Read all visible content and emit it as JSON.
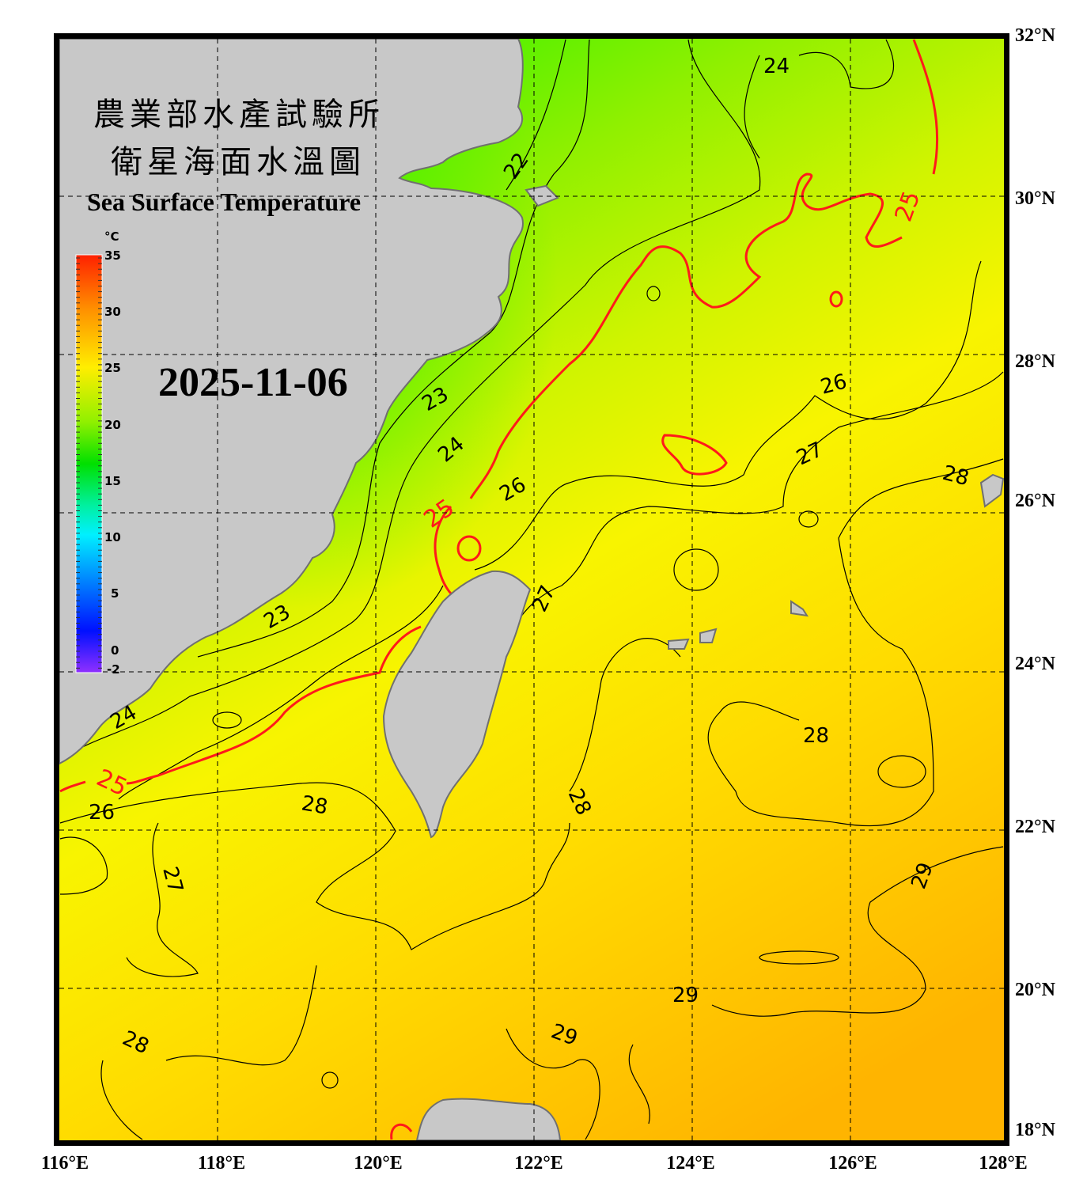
{
  "title": {
    "agency": "農業部水產試驗所",
    "chart_title_cn": "衛星海面水溫圖",
    "chart_title_en": "Sea Surface Temperature",
    "date": "2025-11-06"
  },
  "colorbar": {
    "unit": "°C",
    "ticks": [
      "35",
      "30",
      "25",
      "20",
      "15",
      "10",
      "5",
      "0",
      "-2"
    ],
    "colors": [
      "#ff2000",
      "#ff9000",
      "#ffee00",
      "#a0f000",
      "#00e000",
      "#00f0a0",
      "#00f0ff",
      "#0090ff",
      "#0020ff",
      "#6000ff",
      "#9030ff"
    ]
  },
  "axes": {
    "lon_labels": [
      "116°E",
      "118°E",
      "120°E",
      "122°E",
      "124°E",
      "126°E",
      "128°E"
    ],
    "lat_labels": [
      "32°N",
      "30°N",
      "28°N",
      "26°N",
      "24°N",
      "22°N",
      "20°N",
      "18°N"
    ]
  },
  "contour_labels": {
    "c22": "22",
    "c23a": "23",
    "c23b": "23",
    "c24a": "24",
    "c24b": "24",
    "c24c": "24",
    "c25a": "25",
    "c25b": "25",
    "c25c": "25",
    "c26a": "26",
    "c26b": "26",
    "c26c": "26",
    "c27a": "27",
    "c27b": "27",
    "c27c": "27",
    "c28a": "28",
    "c28b": "28",
    "c28c": "28",
    "c28d": "28",
    "c28e": "28",
    "c29a": "29",
    "c29b": "29",
    "c29c": "29"
  },
  "colors": {
    "land": "#c8c8c8",
    "coast": "#707070",
    "isotherm_25": "#ff1a1a",
    "isotherm": "#000000"
  }
}
